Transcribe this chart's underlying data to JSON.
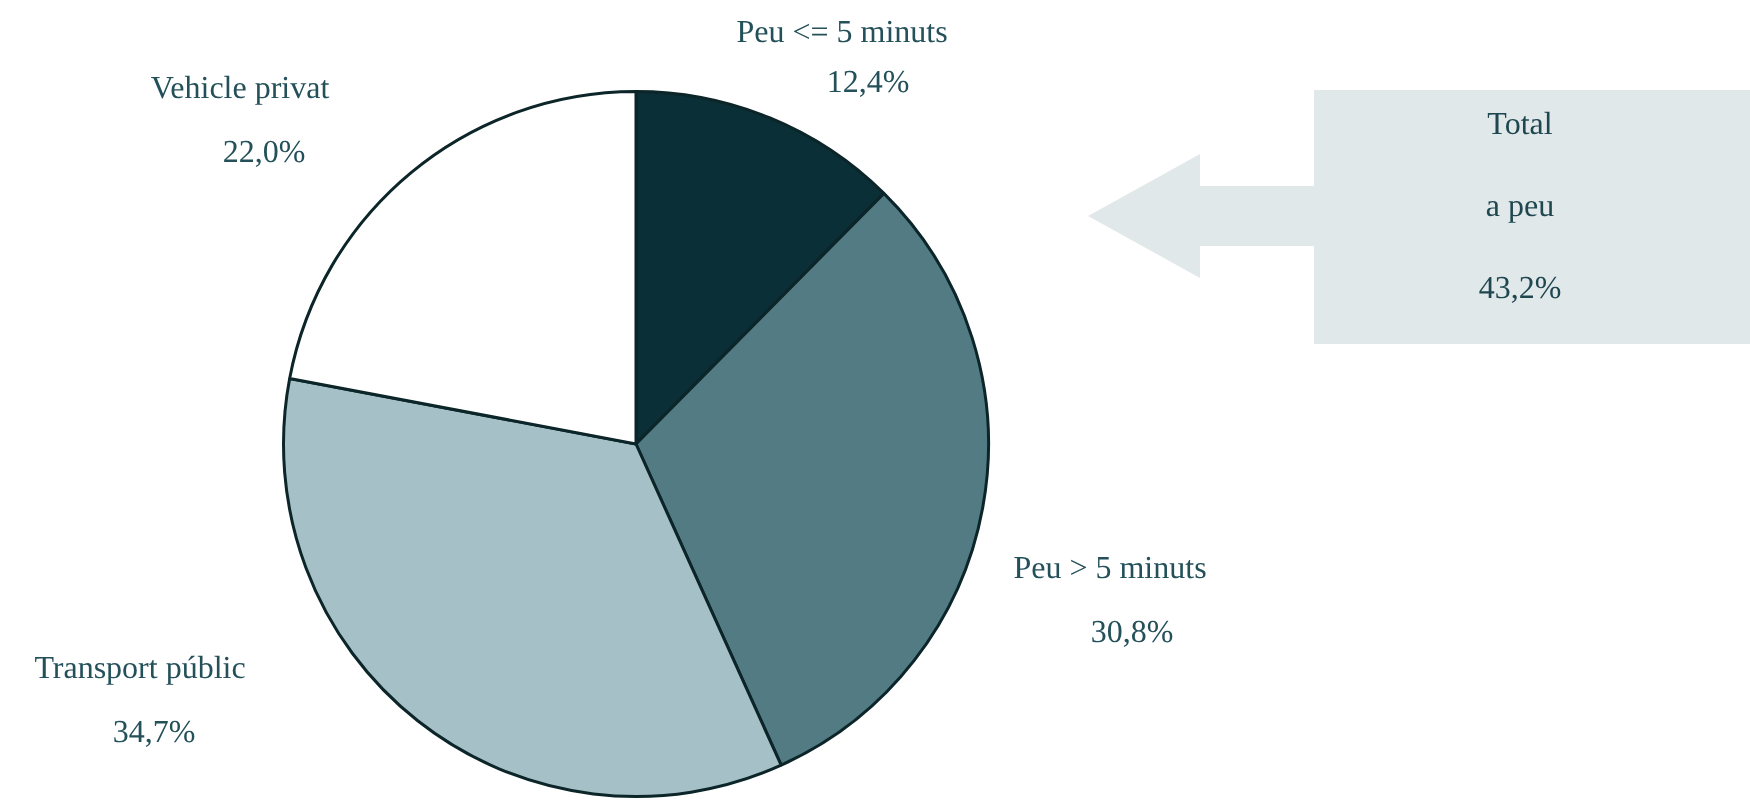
{
  "chart_data": {
    "type": "pie",
    "categories": [
      "Peu <= 5 minuts",
      "Peu > 5 minuts",
      "Transport públic",
      "Vehicle privat"
    ],
    "values": [
      12.4,
      30.8,
      34.7,
      22.0
    ],
    "value_labels": [
      "12,4%",
      "30,8%",
      "34,7%",
      "22,0%"
    ],
    "colors": [
      "#0b2f37",
      "#527b84",
      "#a6c0c7",
      "#ffffff"
    ],
    "legend": false,
    "annotations": [
      "Total\na peu\n43,2%"
    ]
  }
}
